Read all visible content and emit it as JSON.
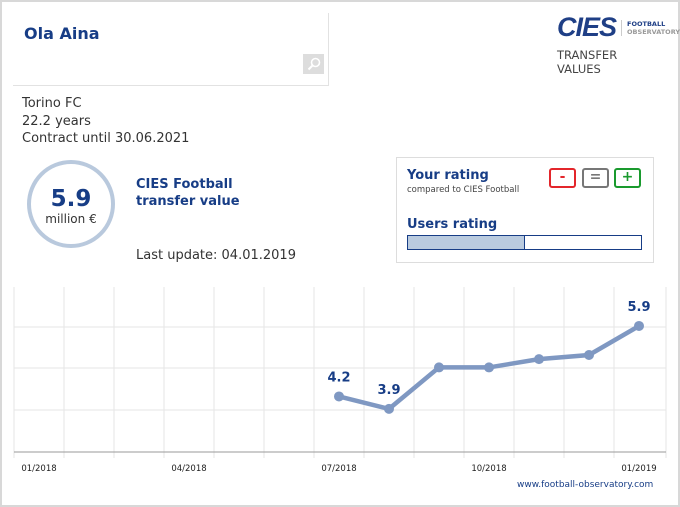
{
  "player": {
    "name": "Ola Aina",
    "club": "Torino FC",
    "age": "22.2 years",
    "contract": "Contract until 30.06.2021"
  },
  "logo": {
    "brand": "CIES",
    "sub1": "FOOTBALL",
    "sub2": "OBSERVATORY",
    "caption1": "TRANSFER",
    "caption2": "VALUES"
  },
  "value": {
    "amount": "5.9",
    "unit": "million €",
    "label": "CIES Football transfer value",
    "last_update": "Last update: 04.01.2019"
  },
  "rating": {
    "your_rating": "Your rating",
    "compared": "compared to CIES Football",
    "minus": "-",
    "equal": "=",
    "plus": "+",
    "users_rating": "Users rating",
    "users_rating_fraction": 0.5,
    "colors": {
      "minus": "#e3262b",
      "equal": "#777777",
      "plus": "#1a9a2e"
    }
  },
  "chart_data": {
    "type": "line",
    "x": [
      "07/2018",
      "08/2018",
      "09/2018",
      "10/2018",
      "11/2018",
      "12/2018",
      "01/2019"
    ],
    "values": [
      4.2,
      3.9,
      4.9,
      4.9,
      5.1,
      5.2,
      5.9
    ],
    "data_labels": [
      "4.2",
      "3.9",
      "",
      "",
      "",
      "",
      "5.9"
    ],
    "xtick_labels": [
      "01/2018",
      "04/2018",
      "07/2018",
      "10/2018",
      "01/2019"
    ],
    "ylim": [
      2.86,
      6.84
    ],
    "grid": true,
    "line_color": "#7f98c2"
  },
  "footer": {
    "source": "www.football-observatory.com"
  }
}
